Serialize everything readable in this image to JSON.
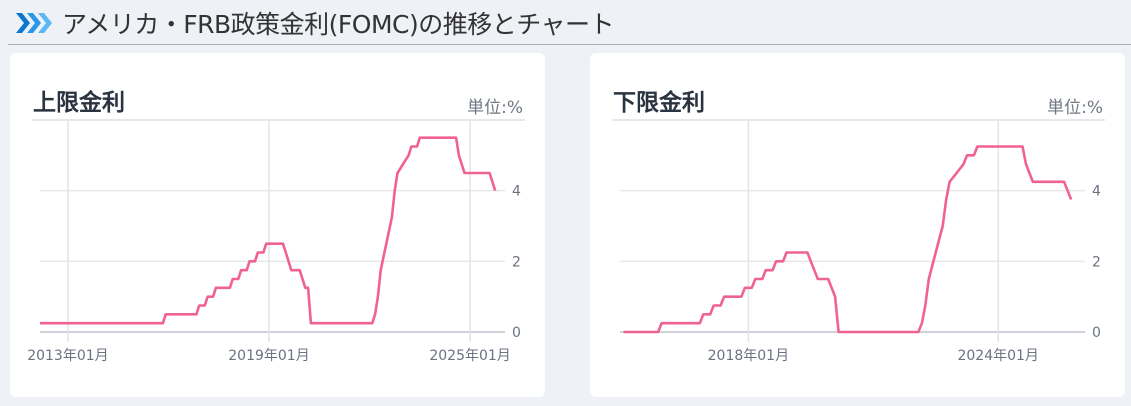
{
  "header": {
    "title": "アメリカ・FRB政策金利(FOMC)の推移とチャート",
    "icon": "triple-chevron-right-icon",
    "icon_color": "#1a8fe0"
  },
  "chart_data": [
    {
      "type": "line",
      "title": "上限金利",
      "unit_label": "単位:%",
      "xlim": [
        "2012-03",
        "2025-11"
      ],
      "ylim": [
        0,
        6
      ],
      "yticks": [
        0,
        2,
        4
      ],
      "xticks": [
        {
          "date": "2013-01",
          "label": "2013年01月"
        },
        {
          "date": "2019-01",
          "label": "2019年01月"
        },
        {
          "date": "2025-01",
          "label": "2025年01月"
        }
      ],
      "grid": true,
      "color": "#f06292",
      "points": [
        [
          "2012-03",
          0.25
        ],
        [
          "2015-11",
          0.25
        ],
        [
          "2015-12",
          0.5
        ],
        [
          "2016-11",
          0.5
        ],
        [
          "2016-12",
          0.75
        ],
        [
          "2017-02",
          0.75
        ],
        [
          "2017-03",
          1.0
        ],
        [
          "2017-05",
          1.0
        ],
        [
          "2017-06",
          1.25
        ],
        [
          "2017-11",
          1.25
        ],
        [
          "2017-12",
          1.5
        ],
        [
          "2018-02",
          1.5
        ],
        [
          "2018-03",
          1.75
        ],
        [
          "2018-05",
          1.75
        ],
        [
          "2018-06",
          2.0
        ],
        [
          "2018-08",
          2.0
        ],
        [
          "2018-09",
          2.25
        ],
        [
          "2018-11",
          2.25
        ],
        [
          "2018-12",
          2.5
        ],
        [
          "2019-06",
          2.5
        ],
        [
          "2019-07",
          2.25
        ],
        [
          "2019-08",
          2.0
        ],
        [
          "2019-09",
          1.75
        ],
        [
          "2019-12",
          1.75
        ],
        [
          "2020-02",
          1.25
        ],
        [
          "2020-03",
          1.25
        ],
        [
          "2020-04",
          0.25
        ],
        [
          "2022-02",
          0.25
        ],
        [
          "2022-03",
          0.5
        ],
        [
          "2022-04",
          1.0
        ],
        [
          "2022-05",
          1.75
        ],
        [
          "2022-07",
          2.5
        ],
        [
          "2022-09",
          3.25
        ],
        [
          "2022-10",
          4.0
        ],
        [
          "2022-11",
          4.5
        ],
        [
          "2023-01",
          4.75
        ],
        [
          "2023-03",
          5.0
        ],
        [
          "2023-04",
          5.25
        ],
        [
          "2023-06",
          5.25
        ],
        [
          "2023-07",
          5.5
        ],
        [
          "2024-08",
          5.5
        ],
        [
          "2024-09",
          5.0
        ],
        [
          "2024-10",
          4.75
        ],
        [
          "2024-11",
          4.5
        ],
        [
          "2025-08",
          4.5
        ],
        [
          "2025-10",
          4.0
        ]
      ]
    },
    {
      "type": "line",
      "title": "下限金利",
      "unit_label": "単位:%",
      "xlim": [
        "2014-12",
        "2025-12"
      ],
      "ylim": [
        0,
        6
      ],
      "yticks": [
        0,
        2,
        4
      ],
      "xticks": [
        {
          "date": "2018-01",
          "label": "2018年01月"
        },
        {
          "date": "2024-01",
          "label": "2024年01月"
        }
      ],
      "grid": true,
      "color": "#f06292",
      "points": [
        [
          "2015-01",
          0
        ],
        [
          "2015-11",
          0
        ],
        [
          "2015-12",
          0.25
        ],
        [
          "2016-11",
          0.25
        ],
        [
          "2016-12",
          0.5
        ],
        [
          "2017-02",
          0.5
        ],
        [
          "2017-03",
          0.75
        ],
        [
          "2017-05",
          0.75
        ],
        [
          "2017-06",
          1.0
        ],
        [
          "2017-11",
          1.0
        ],
        [
          "2017-12",
          1.25
        ],
        [
          "2018-02",
          1.25
        ],
        [
          "2018-03",
          1.5
        ],
        [
          "2018-05",
          1.5
        ],
        [
          "2018-06",
          1.75
        ],
        [
          "2018-08",
          1.75
        ],
        [
          "2018-09",
          2.0
        ],
        [
          "2018-11",
          2.0
        ],
        [
          "2018-12",
          2.25
        ],
        [
          "2019-06",
          2.25
        ],
        [
          "2019-07",
          2.0
        ],
        [
          "2019-08",
          1.75
        ],
        [
          "2019-09",
          1.5
        ],
        [
          "2019-12",
          1.5
        ],
        [
          "2020-02",
          1.0
        ],
        [
          "2020-03",
          0
        ],
        [
          "2022-02",
          0
        ],
        [
          "2022-03",
          0.25
        ],
        [
          "2022-04",
          0.75
        ],
        [
          "2022-05",
          1.5
        ],
        [
          "2022-07",
          2.25
        ],
        [
          "2022-09",
          3.0
        ],
        [
          "2022-10",
          3.75
        ],
        [
          "2022-11",
          4.25
        ],
        [
          "2023-01",
          4.5
        ],
        [
          "2023-03",
          4.75
        ],
        [
          "2023-04",
          5.0
        ],
        [
          "2023-06",
          5.0
        ],
        [
          "2023-07",
          5.25
        ],
        [
          "2024-08",
          5.25
        ],
        [
          "2024-09",
          4.75
        ],
        [
          "2024-10",
          4.5
        ],
        [
          "2024-11",
          4.25
        ],
        [
          "2025-08",
          4.25
        ],
        [
          "2025-10",
          3.75
        ]
      ]
    }
  ]
}
